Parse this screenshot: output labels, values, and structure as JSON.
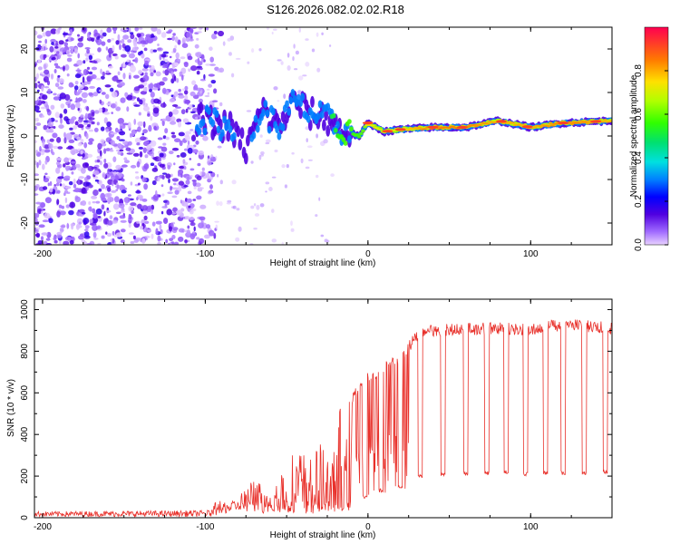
{
  "title": "S126.2026.082.02.02.R18",
  "colors": {
    "snr_line": "#e8302a",
    "frame": "#000000"
  },
  "chart_data": [
    {
      "type": "heatmap",
      "name": "spectrogram",
      "xlabel": "Height of straight line (km)",
      "ylabel": "Frequency (Hz)",
      "xlim": [
        -205,
        150
      ],
      "ylim": [
        -25,
        25
      ],
      "xticks": [
        -200,
        -100,
        0,
        100
      ],
      "xtick_labels": [
        "-200",
        "-100",
        "0",
        "100"
      ],
      "yticks": [
        -20,
        -10,
        0,
        10,
        20
      ],
      "ytick_labels": [
        "-20",
        "-10",
        "0",
        "10",
        "20"
      ],
      "colorbar": {
        "label": "Normalized spectral amplitude",
        "range": [
          0,
          1
        ],
        "ticks": [
          0.0,
          0.2,
          0.4,
          0.6,
          0.8
        ],
        "tick_labels": [
          "0.0",
          "0.2",
          "0.4",
          "0.6",
          "0.8"
        ]
      },
      "ridge": {
        "x": [
          -105,
          -95,
          -85,
          -75,
          -65,
          -55,
          -45,
          -35,
          -25,
          -15,
          -5,
          0,
          10,
          20,
          40,
          60,
          80,
          100,
          120,
          150
        ],
        "freq": [
          4,
          3,
          2,
          -3,
          6,
          2,
          8,
          5,
          4,
          1,
          0,
          3,
          1,
          1.5,
          2,
          2,
          3.5,
          2,
          3,
          3.5
        ],
        "amplitude": [
          0.35,
          0.3,
          0.3,
          0.25,
          0.35,
          0.3,
          0.35,
          0.35,
          0.4,
          0.6,
          0.6,
          0.75,
          0.7,
          0.75,
          0.85,
          0.85,
          0.8,
          0.8,
          0.85,
          0.8
        ]
      }
    },
    {
      "type": "line",
      "name": "snr",
      "xlabel": "Height of straight line (km)",
      "ylabel": "SNR (10 * v/v)",
      "xlim": [
        -205,
        150
      ],
      "ylim": [
        0,
        1050
      ],
      "xticks": [
        -200,
        -100,
        0,
        100
      ],
      "xtick_labels": [
        "-200",
        "-100",
        "0",
        "100"
      ],
      "yticks": [
        0,
        200,
        400,
        600,
        800,
        1000
      ],
      "ytick_labels": [
        "0",
        "200",
        "400",
        "600",
        "800",
        "1000"
      ],
      "envelope": {
        "x": [
          -205,
          -100,
          -90,
          -80,
          -70,
          -60,
          -50,
          -40,
          -30,
          -20,
          -15,
          -10,
          0,
          10,
          20,
          25,
          30,
          40,
          60,
          80,
          100,
          120,
          150
        ],
        "y": [
          25,
          30,
          40,
          100,
          200,
          120,
          280,
          350,
          350,
          380,
          650,
          600,
          700,
          750,
          800,
          850,
          900,
          930,
          935,
          940,
          930,
          960,
          940
        ]
      },
      "dropouts": {
        "x": [
          -2,
          8,
          20,
          32,
          46,
          60,
          73,
          85,
          97,
          109,
          120,
          133,
          146
        ],
        "y": [
          100,
          130,
          150,
          200,
          210,
          215,
          215,
          220,
          210,
          215,
          215,
          215,
          220
        ]
      }
    }
  ]
}
